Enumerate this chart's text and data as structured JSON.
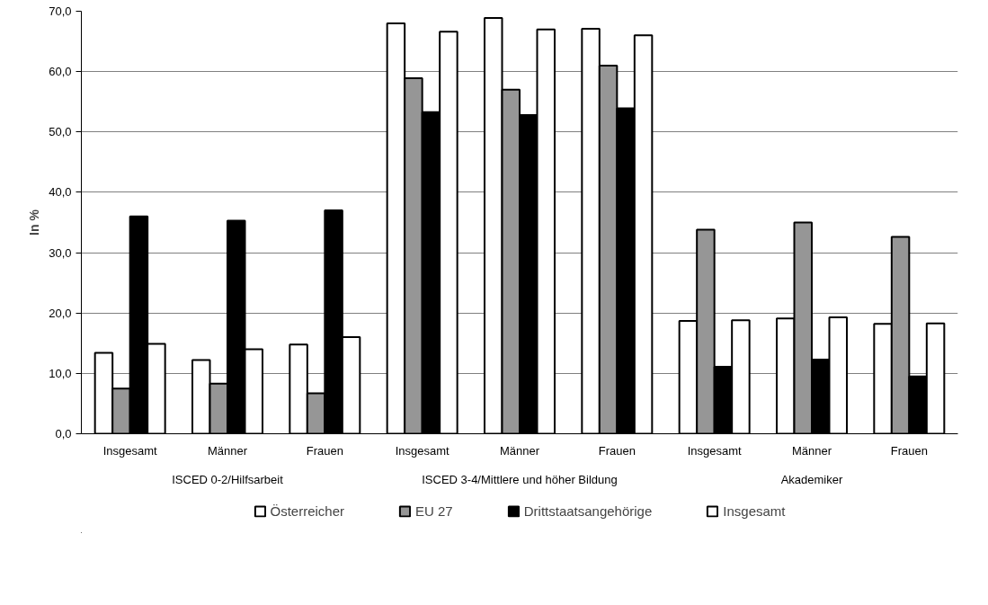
{
  "chart_data": {
    "type": "bar",
    "ylabel": "In %",
    "categories": [
      "Insgesamt",
      "Männer",
      "Frauen",
      "Insgesamt",
      "Männer",
      "Frauen",
      "Insgesamt",
      "Männer",
      "Frauen"
    ],
    "annotations": [
      "ISCED 0-2/Hilfsarbeit",
      "ISCED 3-4/Mittlere und höher Bildung",
      "Akademiker"
    ],
    "series": [
      {
        "name": "Österreicher",
        "color": "#ffffff",
        "values": [
          13.4,
          12.2,
          14.8,
          68.0,
          68.9,
          67.1,
          18.7,
          19.1,
          18.2
        ]
      },
      {
        "name": "EU 27",
        "color": "#969696",
        "values": [
          7.5,
          8.3,
          6.7,
          58.9,
          57.0,
          61.0,
          33.8,
          35.0,
          32.6
        ]
      },
      {
        "name": "Drittstaatsangehörige",
        "color": "#000000",
        "values": [
          36.0,
          35.3,
          37.0,
          53.3,
          52.8,
          53.9,
          11.1,
          12.3,
          9.5
        ]
      },
      {
        "name": "Insgesamt",
        "color": "#ffffff",
        "values": [
          14.9,
          14.0,
          16.0,
          66.6,
          67.0,
          66.0,
          18.8,
          19.3,
          18.3
        ]
      }
    ],
    "ylim": [
      0,
      70
    ],
    "yticks": [
      {
        "value": 0,
        "label": "0,0"
      },
      {
        "value": 10,
        "label": "10,0"
      },
      {
        "value": 20,
        "label": "20,0"
      },
      {
        "value": 30,
        "label": "30,0"
      },
      {
        "value": 40,
        "label": "40,0"
      },
      {
        "value": 50,
        "label": "50,0"
      },
      {
        "value": 60,
        "label": "60,0"
      },
      {
        "value": 70,
        "label": "70,0"
      }
    ],
    "grid": "y",
    "legend": "bottom"
  }
}
